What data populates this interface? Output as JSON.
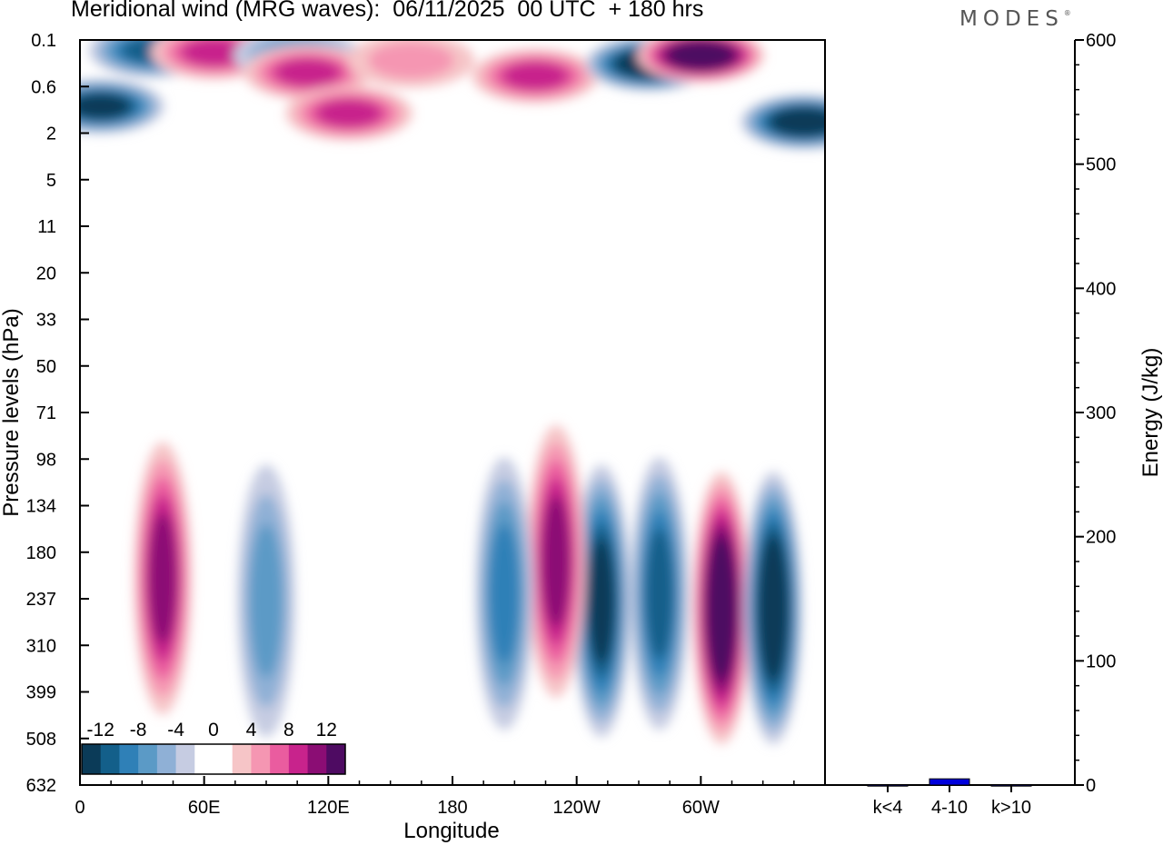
{
  "title": "Meridional wind (MRG waves):  06/11/2025  00 UTC  + 180 hrs",
  "logo": "MODES",
  "chart_data": [
    {
      "type": "heatmap",
      "title": "Meridional wind (MRG waves):  06/11/2025  00 UTC  + 180 hrs",
      "xlabel": "Longitude",
      "ylabel": "Pressure levels (hPa)",
      "x_ticks": [
        "0",
        "60E",
        "120E",
        "180",
        "120W",
        "60W"
      ],
      "y_ticks": [
        "0.1",
        "0.6",
        "2",
        "5",
        "11",
        "20",
        "33",
        "50",
        "71",
        "98",
        "134",
        "180",
        "237",
        "310",
        "399",
        "508",
        "632"
      ],
      "colorbar": {
        "labels": [
          "-12",
          "-8",
          "-4",
          "0",
          "4",
          "8",
          "12"
        ],
        "levels": [
          -14,
          -12,
          -10,
          -8,
          -6,
          -4,
          -2,
          0,
          2,
          4,
          6,
          8,
          10,
          12,
          14
        ],
        "colors": [
          "#0b3b58",
          "#135f8a",
          "#2f80b7",
          "#5b9ac6",
          "#8fb0d6",
          "#c6cce2",
          "#ffffff",
          "#ffffff",
          "#f6c5c7",
          "#f596b2",
          "#ea5c9f",
          "#c8238c",
          "#8b0d74",
          "#4e0b62"
        ]
      },
      "features": [
        {
          "lon": 35,
          "p": 0.15,
          "value": -10
        },
        {
          "lon": 65,
          "p": 0.16,
          "value": 7
        },
        {
          "lon": 105,
          "p": 0.18,
          "value": -5
        },
        {
          "lon": 110,
          "p": 0.35,
          "value": 8
        },
        {
          "lon": 160,
          "p": 0.22,
          "value": 4
        },
        {
          "lon": 220,
          "p": 0.4,
          "value": 7
        },
        {
          "lon": 275,
          "p": 0.25,
          "value": -14
        },
        {
          "lon": 300,
          "p": 0.18,
          "value": 14
        },
        {
          "lon": 10,
          "p": 1.0,
          "value": -12
        },
        {
          "lon": 350,
          "p": 1.5,
          "value": -14
        },
        {
          "lon": 130,
          "p": 1.2,
          "value": 8
        },
        {
          "lon": 40,
          "p": 210,
          "value": 10
        },
        {
          "lon": 90,
          "p": 240,
          "value": -6
        },
        {
          "lon": 252,
          "p": 240,
          "value": -12
        },
        {
          "lon": 310,
          "p": 250,
          "value": 14
        },
        {
          "lon": 335,
          "p": 250,
          "value": -14
        },
        {
          "lon": 280,
          "p": 230,
          "value": -10
        },
        {
          "lon": 230,
          "p": 190,
          "value": 10
        },
        {
          "lon": 205,
          "p": 230,
          "value": -8
        }
      ]
    },
    {
      "type": "bar",
      "categories": [
        "k<4",
        "4-10",
        "k>10"
      ],
      "values": [
        0,
        5,
        0
      ],
      "ylabel": "Energy (J/kg)",
      "ylim": [
        0,
        600
      ],
      "y_ticks": [
        "0",
        "100",
        "200",
        "300",
        "400",
        "500",
        "600"
      ],
      "bar_color": "#0000dd"
    }
  ]
}
